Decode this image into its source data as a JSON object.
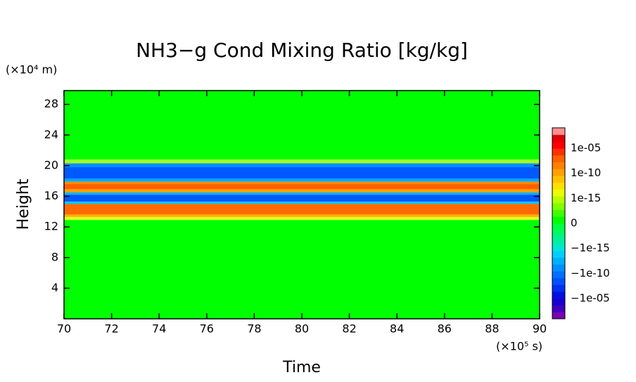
{
  "chart_data": {
    "type": "contour",
    "title": "NH3−g Cond Mixing Ratio [kg/kg]",
    "xlabel": "Time",
    "ylabel": "Height",
    "xunit": "(×10⁵ s)",
    "yunit": "(×10⁴ m)",
    "xlim": [
      70,
      90
    ],
    "ylim": [
      0,
      29.8
    ],
    "xticks": [
      70,
      72,
      74,
      76,
      78,
      80,
      82,
      84,
      86,
      88,
      90
    ],
    "yticks": [
      4,
      8,
      12,
      16,
      20,
      24,
      28
    ],
    "rows": [
      {
        "ylim": [
          20.8,
          29.8
        ],
        "color": "#00ff00"
      },
      {
        "ylim": [
          20.3,
          20.8
        ],
        "color": "#a0ff20"
      },
      {
        "ylim": [
          19.8,
          20.3
        ],
        "color": "#0090ff"
      },
      {
        "ylim": [
          18.3,
          19.8
        ],
        "color": "#0058ff"
      },
      {
        "ylim": [
          17.9,
          18.3
        ],
        "color": "#00a8ff"
      },
      {
        "ylim": [
          17.6,
          17.9
        ],
        "color": "#ff8c00"
      },
      {
        "ylim": [
          16.9,
          17.6
        ],
        "color": "#ff6000"
      },
      {
        "ylim": [
          16.5,
          16.9
        ],
        "color": "#ffa000"
      },
      {
        "ylim": [
          16.2,
          16.5
        ],
        "color": "#00b0ff"
      },
      {
        "ylim": [
          15.3,
          16.2
        ],
        "color": "#0058ff"
      },
      {
        "ylim": [
          15.0,
          15.3
        ],
        "color": "#00c8ff"
      },
      {
        "ylim": [
          13.6,
          15.0
        ],
        "color": "#ff6a00"
      },
      {
        "ylim": [
          13.3,
          13.6
        ],
        "color": "#ffb000"
      },
      {
        "ylim": [
          12.9,
          13.3
        ],
        "color": "#e0ff20"
      },
      {
        "ylim": [
          0,
          12.9
        ],
        "color": "#00ff00"
      }
    ],
    "colorbar": {
      "colors": [
        "#7a00b0",
        "#4000c0",
        "#1800d0",
        "#0010e0",
        "#0030f0",
        "#0050ff",
        "#0070ff",
        "#0090ff",
        "#00b0ff",
        "#00d0ff",
        "#00e8d0",
        "#00f0a0",
        "#00f870",
        "#00ff40",
        "#00ff00",
        "#40ff00",
        "#80ff00",
        "#b8ff00",
        "#e8ff00",
        "#ffe000",
        "#ffc000",
        "#ffa000",
        "#ff8000",
        "#ff6000",
        "#ff3000",
        "#ff0000",
        "#e00000",
        "#ff9090"
      ],
      "ticks": [
        {
          "value": -1e-05,
          "label": "−1e-05"
        },
        {
          "value": -1e-10,
          "label": "−1e-10"
        },
        {
          "value": -1e-15,
          "label": "−1e-15"
        },
        0,
        {
          "value": 1e-15,
          "label": "1e-15"
        },
        {
          "value": 1e-10,
          "label": "1e-10"
        },
        {
          "value": 1e-05,
          "label": "1e-05"
        }
      ]
    }
  }
}
